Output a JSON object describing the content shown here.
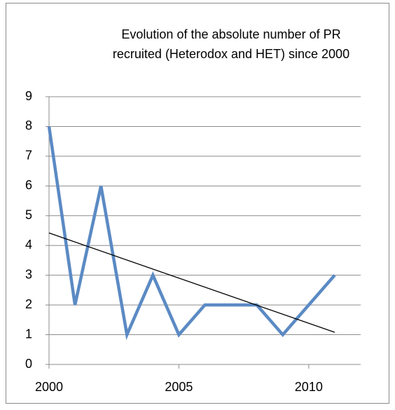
{
  "chart_data": {
    "type": "line",
    "title": [
      "Evolution of the absolute number of PR",
      "recruited (Heterodox and HET) since 2000"
    ],
    "x": [
      2000,
      2001,
      2002,
      2003,
      2004,
      2005,
      2006,
      2007,
      2008,
      2009,
      2010,
      2011
    ],
    "series": [
      {
        "color": "#5b8ac4",
        "values": [
          8,
          2,
          6,
          1,
          3,
          1,
          2,
          2,
          2,
          1,
          2,
          3
        ]
      }
    ],
    "trendline": {
      "color": "#000000",
      "x": [
        2000,
        2011
      ],
      "values": [
        4.42,
        1.08
      ]
    },
    "xlim": [
      2000,
      2012
    ],
    "xticks": [
      2000,
      2005,
      2010
    ],
    "ylim": [
      0,
      9
    ],
    "yticks": [
      0,
      1,
      2,
      3,
      4,
      5,
      6,
      7,
      8,
      9
    ],
    "grid": true
  }
}
